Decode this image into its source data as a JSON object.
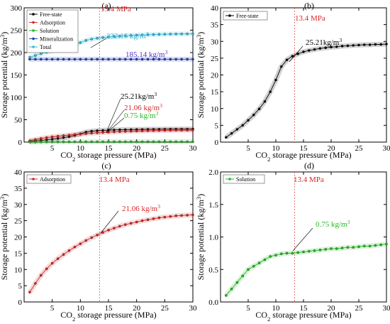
{
  "chart_data": [
    {
      "panel_label": "(a)",
      "type": "line",
      "xlabel": "CO2 storage pressure (MPa)",
      "ylabel": "Storage potential (kg/m3)",
      "xlim": [
        0,
        30
      ],
      "ylim": [
        0,
        300
      ],
      "xticks": [
        5,
        10,
        15,
        20,
        25,
        30
      ],
      "yticks": [
        0,
        50,
        100,
        150,
        200,
        250,
        300
      ],
      "legend_position": "top-left",
      "ref_line": {
        "x": 13.4,
        "label": "13.4 MPa"
      },
      "series": [
        {
          "name": "Free-state",
          "color": "#000000",
          "x": [
            1,
            2,
            3,
            4,
            5,
            6,
            7,
            8,
            9,
            10,
            11,
            12,
            13,
            14,
            15,
            16,
            17,
            18,
            19,
            20,
            21,
            22,
            23,
            24,
            25,
            26,
            27,
            28,
            29,
            30
          ],
          "y": [
            1.4,
            2.6,
            3.8,
            5.0,
            6.5,
            8.1,
            9.9,
            12.1,
            15.0,
            18.5,
            22.5,
            24.5,
            25.6,
            26.3,
            26.9,
            27.3,
            27.6,
            27.9,
            28.1,
            28.3,
            28.4,
            28.6,
            28.7,
            28.8,
            28.9,
            29.0,
            29.0,
            29.1,
            29.1,
            29.2
          ]
        },
        {
          "name": "Adsorption",
          "color": "#d62728",
          "x": [
            1,
            2,
            3,
            4,
            5,
            6,
            7,
            8,
            9,
            10,
            11,
            12,
            13,
            14,
            15,
            16,
            17,
            18,
            19,
            20,
            21,
            22,
            23,
            24,
            25,
            26,
            27,
            28,
            29,
            30
          ],
          "y": [
            3.0,
            5.7,
            8.2,
            10.2,
            11.9,
            13.3,
            14.6,
            15.8,
            16.9,
            17.9,
            18.9,
            19.8,
            20.6,
            21.4,
            22.1,
            22.7,
            23.3,
            23.8,
            24.2,
            24.6,
            25.0,
            25.3,
            25.6,
            25.9,
            26.1,
            26.3,
            26.5,
            26.6,
            26.7,
            26.8
          ]
        },
        {
          "name": "Solution",
          "color": "#22bb22",
          "x": [
            1,
            2,
            3,
            4,
            5,
            6,
            7,
            8,
            9,
            10,
            11,
            12,
            13,
            14,
            15,
            16,
            17,
            18,
            19,
            20,
            21,
            22,
            23,
            24,
            25,
            26,
            27,
            28,
            29,
            30
          ],
          "y": [
            0.1,
            0.2,
            0.3,
            0.4,
            0.5,
            0.55,
            0.6,
            0.65,
            0.7,
            0.72,
            0.74,
            0.75,
            0.75,
            0.76,
            0.77,
            0.78,
            0.79,
            0.8,
            0.81,
            0.82,
            0.82,
            0.83,
            0.84,
            0.84,
            0.85,
            0.86,
            0.86,
            0.87,
            0.88,
            0.89
          ]
        },
        {
          "name": "Mineralization",
          "color": "#1f3fbf",
          "x": [
            1,
            2,
            3,
            4,
            5,
            6,
            7,
            8,
            9,
            10,
            11,
            12,
            13,
            14,
            15,
            16,
            17,
            18,
            19,
            20,
            21,
            22,
            23,
            24,
            25,
            26,
            27,
            28,
            29,
            30
          ],
          "y": [
            185.14,
            185.14,
            185.14,
            185.14,
            185.14,
            185.14,
            185.14,
            185.14,
            185.14,
            185.14,
            185.14,
            185.14,
            185.14,
            185.14,
            185.14,
            185.14,
            185.14,
            185.14,
            185.14,
            185.14,
            185.14,
            185.14,
            185.14,
            185.14,
            185.14,
            185.14,
            185.14,
            185.14,
            185.14,
            185.14
          ]
        },
        {
          "name": "Total",
          "color": "#33bbdd",
          "x": [
            1,
            2,
            3,
            4,
            5,
            6,
            7,
            8,
            9,
            10,
            11,
            12,
            13,
            14,
            15,
            16,
            17,
            18,
            19,
            20,
            21,
            22,
            23,
            24,
            25,
            26,
            27,
            28,
            29,
            30
          ],
          "y": [
            189.6,
            193.6,
            197.5,
            200.7,
            204.0,
            207.1,
            210.2,
            213.7,
            217.7,
            222.3,
            227.2,
            230.1,
            232.1,
            233.6,
            234.9,
            235.9,
            236.8,
            237.6,
            238.3,
            238.9,
            239.4,
            239.9,
            240.3,
            240.7,
            241.0,
            241.3,
            241.5,
            241.7,
            241.8,
            242.0
          ]
        }
      ],
      "annotations": [
        {
          "text": "232.16 kg/m3",
          "color": "#33bbdd"
        },
        {
          "text": "185.14 kg/m3",
          "color": "#5533cc"
        },
        {
          "text": "25.21kg/m3",
          "color": "#000000"
        },
        {
          "text": "21.06 kg/m3",
          "color": "#d62728"
        },
        {
          "text": "0.75 kg/m3",
          "color": "#22bb22"
        }
      ]
    },
    {
      "panel_label": "(b)",
      "type": "line",
      "xlabel": "CO2 storage pressure (MPa)",
      "ylabel": "Storage potential (kg/m3)",
      "xlim": [
        0,
        30
      ],
      "ylim": [
        0,
        40
      ],
      "xticks": [
        5,
        10,
        15,
        20,
        25,
        30
      ],
      "yticks": [
        0,
        5,
        10,
        15,
        20,
        25,
        30,
        35,
        40
      ],
      "legend_position": "top-left",
      "ref_line": {
        "x": 13.4,
        "label": "13.4 MPa"
      },
      "series": [
        {
          "name": "Free-state",
          "color": "#000000",
          "x": [
            1,
            2,
            3,
            4,
            5,
            6,
            7,
            8,
            9,
            10,
            11,
            12,
            13,
            14,
            15,
            16,
            17,
            18,
            19,
            20,
            21,
            22,
            23,
            24,
            25,
            26,
            27,
            28,
            29,
            30
          ],
          "y": [
            1.4,
            2.6,
            3.8,
            5.0,
            6.5,
            8.1,
            9.9,
            12.1,
            15.0,
            18.5,
            22.5,
            24.5,
            25.6,
            26.3,
            26.9,
            27.3,
            27.6,
            27.9,
            28.1,
            28.3,
            28.4,
            28.6,
            28.7,
            28.8,
            28.9,
            29.0,
            29.0,
            29.1,
            29.1,
            29.2
          ]
        }
      ],
      "annotations": [
        {
          "text": "25.21kg/m3",
          "color": "#000000"
        }
      ]
    },
    {
      "panel_label": "(c)",
      "type": "line",
      "xlabel": "CO2 storage pressure (MPa)",
      "ylabel": "Storage potential (kg/m3)",
      "xlim": [
        0,
        30
      ],
      "ylim": [
        0,
        40
      ],
      "xticks": [
        5,
        10,
        15,
        20,
        25,
        30
      ],
      "yticks": [
        0,
        5,
        10,
        15,
        20,
        25,
        30,
        35,
        40
      ],
      "legend_position": "top-left",
      "ref_line": {
        "x": 13.4,
        "label": "13.4 MPa"
      },
      "series": [
        {
          "name": "Adsorption",
          "color": "#d62728",
          "x": [
            1,
            2,
            3,
            4,
            5,
            6,
            7,
            8,
            9,
            10,
            11,
            12,
            13,
            14,
            15,
            16,
            17,
            18,
            19,
            20,
            21,
            22,
            23,
            24,
            25,
            26,
            27,
            28,
            29,
            30
          ],
          "y": [
            3.0,
            5.7,
            8.2,
            10.2,
            11.9,
            13.3,
            14.6,
            15.8,
            16.9,
            17.9,
            18.9,
            19.8,
            20.6,
            21.4,
            22.1,
            22.7,
            23.3,
            23.8,
            24.2,
            24.6,
            25.0,
            25.3,
            25.6,
            25.9,
            26.1,
            26.3,
            26.5,
            26.6,
            26.7,
            26.8
          ]
        }
      ],
      "annotations": [
        {
          "text": "21.06 kg/m3",
          "color": "#d62728"
        }
      ]
    },
    {
      "panel_label": "(d)",
      "type": "line",
      "xlabel": "CO2 storage pressure (MPa)",
      "ylabel": "Storage potential (kg/m3)",
      "xlim": [
        0,
        30
      ],
      "ylim": [
        0,
        2.0
      ],
      "xticks": [
        5,
        10,
        15,
        20,
        25,
        30
      ],
      "yticks": [
        0.0,
        0.5,
        1.0,
        1.5,
        2.0
      ],
      "legend_position": "top-left",
      "ref_line": {
        "x": 13.4,
        "label": "13.4 MPa"
      },
      "series": [
        {
          "name": "Solution",
          "color": "#22bb22",
          "x": [
            1,
            2,
            3,
            4,
            5,
            6,
            7,
            8,
            9,
            10,
            11,
            12,
            13,
            14,
            15,
            16,
            17,
            18,
            19,
            20,
            21,
            22,
            23,
            24,
            25,
            26,
            27,
            28,
            29,
            30
          ],
          "y": [
            0.1,
            0.2,
            0.3,
            0.4,
            0.5,
            0.55,
            0.6,
            0.65,
            0.7,
            0.72,
            0.74,
            0.75,
            0.75,
            0.76,
            0.77,
            0.78,
            0.79,
            0.8,
            0.81,
            0.82,
            0.82,
            0.83,
            0.84,
            0.84,
            0.85,
            0.86,
            0.86,
            0.87,
            0.88,
            0.89
          ]
        }
      ],
      "annotations": [
        {
          "text": "0.75 kg/m3",
          "color": "#22bb22"
        }
      ]
    }
  ]
}
